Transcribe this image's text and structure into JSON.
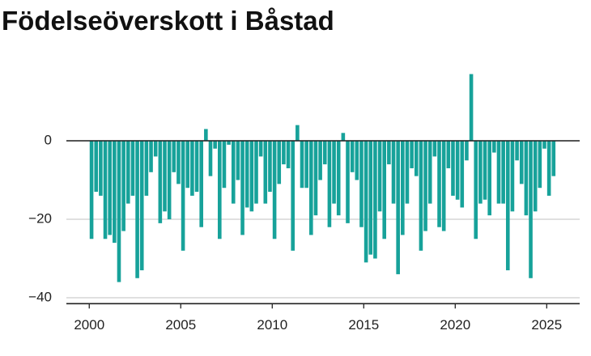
{
  "chart_data": {
    "type": "bar",
    "title": "Födelseöverskott i Båstad",
    "x": [
      2000.125,
      2000.375,
      2000.625,
      2000.875,
      2001.125,
      2001.375,
      2001.625,
      2001.875,
      2002.125,
      2002.375,
      2002.625,
      2002.875,
      2003.125,
      2003.375,
      2003.625,
      2003.875,
      2004.125,
      2004.375,
      2004.625,
      2004.875,
      2005.125,
      2005.375,
      2005.625,
      2005.875,
      2006.125,
      2006.375,
      2006.625,
      2006.875,
      2007.125,
      2007.375,
      2007.625,
      2007.875,
      2008.125,
      2008.375,
      2008.625,
      2008.875,
      2009.125,
      2009.375,
      2009.625,
      2009.875,
      2010.125,
      2010.375,
      2010.625,
      2010.875,
      2011.125,
      2011.375,
      2011.625,
      2011.875,
      2012.125,
      2012.375,
      2012.625,
      2012.875,
      2013.125,
      2013.375,
      2013.625,
      2013.875,
      2014.125,
      2014.375,
      2014.625,
      2014.875,
      2015.125,
      2015.375,
      2015.625,
      2015.875,
      2016.125,
      2016.375,
      2016.625,
      2016.875,
      2017.125,
      2017.375,
      2017.625,
      2017.875,
      2018.125,
      2018.375,
      2018.625,
      2018.875,
      2019.125,
      2019.375,
      2019.625,
      2019.875,
      2020.125,
      2020.375,
      2020.625,
      2020.875,
      2021.125,
      2021.375,
      2021.625,
      2021.875,
      2022.125,
      2022.375,
      2022.625,
      2022.875,
      2023.125,
      2023.375,
      2023.625,
      2023.875,
      2024.125,
      2024.375,
      2024.625,
      2024.875,
      2025.125,
      2025.375
    ],
    "values": [
      -25,
      -13,
      -14,
      -25,
      -24,
      -26,
      -36,
      -23,
      -16,
      -14,
      -35,
      -33,
      -14,
      -8,
      -4,
      -21,
      -18,
      -20,
      -8,
      -11,
      -28,
      -12,
      -14,
      -13,
      -22,
      3,
      -9,
      -2,
      -25,
      -12,
      -1,
      -16,
      -10,
      -24,
      -17,
      -18,
      -16,
      -4,
      -16,
      -13,
      -25,
      -11,
      -6,
      -7,
      -28,
      4,
      -12,
      -12,
      -24,
      -19,
      -10,
      -6,
      -22,
      -16,
      -19,
      2,
      -21,
      -8,
      -10,
      -22,
      -31,
      -29,
      -30,
      -18,
      -25,
      -6,
      -16,
      -34,
      -24,
      -16,
      -7,
      -9,
      -28,
      -23,
      -16,
      -4,
      -22,
      -23,
      -7,
      -14,
      -15,
      -17,
      -5,
      17,
      -25,
      -16,
      -15,
      -19,
      -3,
      -16,
      -16,
      -33,
      -18,
      -5,
      -11,
      -19,
      -35,
      -18,
      -12,
      -2,
      -14,
      -9
    ],
    "color": "#17a29a",
    "xlim": [
      1998.75,
      2026.8
    ],
    "xticks": [
      2000,
      2005,
      2010,
      2015,
      2020,
      2025
    ],
    "ylim": [
      -41.5,
      24
    ],
    "yticks": [
      {
        "value": -40,
        "label": "−40"
      },
      {
        "value": -20,
        "label": "−20"
      },
      0
    ],
    "grid": true
  }
}
